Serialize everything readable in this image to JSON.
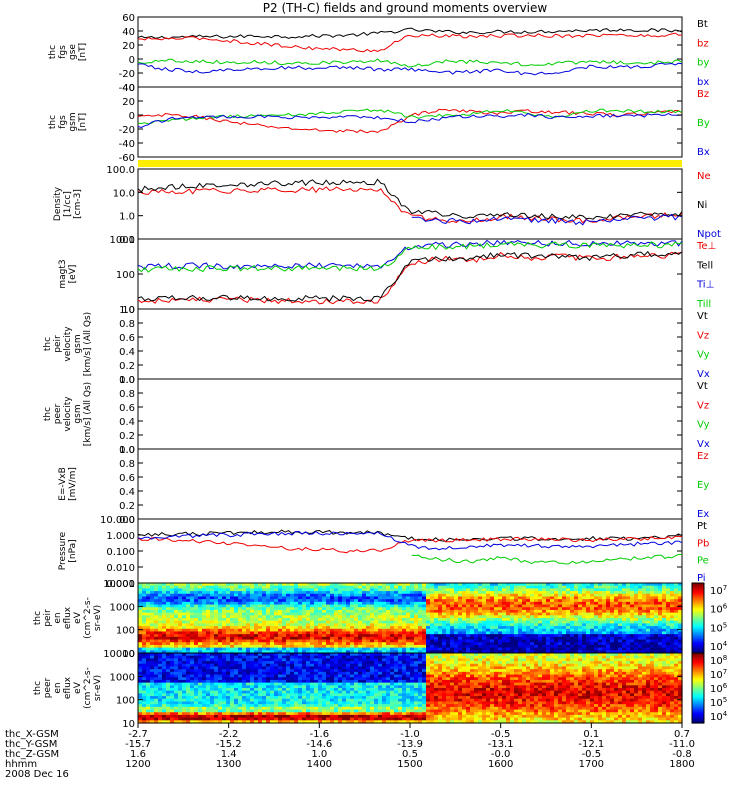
{
  "title": "P2 (TH-C) fields and ground moments overview",
  "colors": {
    "black": "#000000",
    "red": "#ee0000",
    "green": "#00cc00",
    "blue": "#0000dd",
    "yellow": "#ffee00"
  },
  "chart_data": [
    {
      "type": "line",
      "name": "fgs_gse",
      "ylabel": [
        "thc",
        "fgs",
        "gse",
        "[nT]"
      ],
      "ticks": [
        "60",
        "40",
        "20",
        "0",
        "-20",
        "-40"
      ],
      "ylim": [
        -40,
        60
      ],
      "series": [
        {
          "name": "Bt",
          "color": "#000000",
          "values": [
            30,
            31,
            32,
            32,
            33,
            32,
            33,
            34,
            37,
            42,
            39,
            38,
            39,
            39,
            40,
            41,
            42,
            41,
            40
          ]
        },
        {
          "name": "bz",
          "color": "#ee0000",
          "values": [
            28,
            29,
            30,
            26,
            22,
            18,
            15,
            13,
            12,
            34,
            33,
            32,
            33,
            34,
            33,
            34,
            34,
            33,
            36
          ]
        },
        {
          "name": "by",
          "color": "#00cc00",
          "values": [
            -5,
            -2,
            -3,
            -5,
            -4,
            -6,
            -5,
            -5,
            -2,
            -12,
            -3,
            -4,
            -5,
            -8,
            -6,
            -4,
            -5,
            -6,
            -3
          ]
        },
        {
          "name": "bx",
          "color": "#0000dd",
          "values": [
            -8,
            -15,
            -18,
            -16,
            -14,
            -12,
            -13,
            -12,
            -15,
            -15,
            -20,
            -18,
            -16,
            -22,
            -18,
            -10,
            -12,
            -10,
            -5
          ]
        }
      ]
    },
    {
      "type": "line",
      "name": "fgs_gsm",
      "ylabel": [
        "thc",
        "fgs",
        "gsm",
        "[nT]"
      ],
      "ticks": [
        "40",
        "20",
        "0",
        "-20",
        "-40",
        "-60"
      ],
      "ylim": [
        -65,
        40
      ],
      "series": [
        {
          "name": "Bz",
          "color": "#ee0000",
          "values": [
            -5,
            -2,
            -5,
            -12,
            -18,
            -22,
            -25,
            -26,
            -28,
            -3,
            6,
            3,
            1,
            4,
            2,
            0,
            -2,
            1,
            3
          ]
        },
        {
          "name": "By",
          "color": "#00cc00",
          "values": [
            -15,
            -10,
            -6,
            -4,
            -3,
            -2,
            0,
            4,
            6,
            -5,
            -3,
            0,
            5,
            0,
            -4,
            4,
            5,
            3,
            4
          ]
        },
        {
          "name": "Bx",
          "color": "#0000dd",
          "values": [
            -20,
            -8,
            -5,
            -5,
            -4,
            -6,
            -5,
            -4,
            -6,
            -12,
            -8,
            -3,
            -4,
            -2,
            -6,
            -4,
            -2,
            -3,
            0
          ]
        }
      ]
    },
    {
      "type": "bar",
      "name": "mode-bar",
      "color": "#ffee00"
    },
    {
      "type": "line",
      "name": "density",
      "ylabel": [
        "Density",
        "[1/cc]",
        "[cm-3]"
      ],
      "ticks": [
        "100.0",
        "10.0",
        "1.0",
        "0.1"
      ],
      "log": true,
      "ylim": [
        0.1,
        100
      ],
      "series": [
        {
          "name": "Ne",
          "color": "#ee0000",
          "values": [
            10,
            10,
            11,
            12,
            12,
            13,
            13,
            13,
            13,
            0.9,
            0.7,
            0.6,
            0.9,
            0.8,
            0.7,
            0.6,
            0.8,
            1.0,
            1.0
          ]
        },
        {
          "name": "Ni",
          "color": "#000000",
          "values": [
            13,
            17,
            20,
            22,
            23,
            25,
            27,
            27,
            28,
            1.5,
            1.2,
            0.9,
            1.2,
            1.0,
            0.9,
            0.8,
            1.0,
            1.2,
            1.2
          ]
        },
        {
          "name": "Npot",
          "color": "#0000dd",
          "values": [
            null,
            null,
            null,
            null,
            null,
            null,
            null,
            null,
            null,
            0.8,
            0.6,
            0.55,
            0.7,
            0.65,
            0.6,
            0.5,
            0.7,
            0.8,
            0.9
          ]
        }
      ]
    },
    {
      "type": "line",
      "name": "temperature",
      "ylabel": [
        "magt3",
        "[eV]"
      ],
      "ticks": [
        "1000",
        "100",
        "10"
      ],
      "log": true,
      "ylim": [
        8,
        5000
      ],
      "series": [
        {
          "name": "Te⊥",
          "color": "#ee0000",
          "values": [
            17,
            18,
            18,
            18,
            18,
            17,
            17,
            17,
            17,
            500,
            800,
            700,
            1200,
            900,
            1000,
            800,
            1000,
            1100,
            1200
          ]
        },
        {
          "name": "Tell",
          "color": "#000000",
          "values": [
            20,
            21,
            22,
            22,
            21,
            21,
            21,
            21,
            21,
            600,
            900,
            800,
            1300,
            1000,
            1100,
            900,
            1100,
            1200,
            1300
          ]
        },
        {
          "name": "Ti⊥",
          "color": "#0000dd",
          "values": [
            400,
            420,
            420,
            420,
            420,
            420,
            420,
            420,
            420,
            2500,
            3000,
            3200,
            3500,
            3300,
            3400,
            3300,
            3400,
            3400,
            3500
          ]
        },
        {
          "name": "Till",
          "color": "#00cc00",
          "values": [
            300,
            320,
            330,
            330,
            330,
            330,
            330,
            330,
            330,
            2000,
            2500,
            2700,
            3000,
            2800,
            2900,
            2800,
            2900,
            2900,
            3000
          ]
        }
      ]
    },
    {
      "type": "line",
      "name": "peir-velocity",
      "ylabel": [
        "thc",
        "peir",
        "velocity",
        "gsm",
        "[km/s] (All Qs)"
      ],
      "ticks": [
        "1.0",
        "0.8",
        "0.6",
        "0.4",
        "0.2",
        "0.0"
      ],
      "ylim": [
        0,
        1
      ],
      "series": [
        {
          "name": "Vt",
          "color": "#000000"
        },
        {
          "name": "Vz",
          "color": "#ee0000"
        },
        {
          "name": "Vy",
          "color": "#00cc00"
        },
        {
          "name": "Vx",
          "color": "#0000dd"
        }
      ]
    },
    {
      "type": "line",
      "name": "peer-velocity",
      "ylabel": [
        "thc",
        "peer",
        "velocity",
        "gsm",
        "[km/s] (All Qs)"
      ],
      "ticks": [
        "1.0",
        "0.8",
        "0.6",
        "0.4",
        "0.2",
        "0.0"
      ],
      "ylim": [
        0,
        1
      ],
      "series": [
        {
          "name": "Vt",
          "color": "#000000"
        },
        {
          "name": "Vz",
          "color": "#ee0000"
        },
        {
          "name": "Vy",
          "color": "#00cc00"
        },
        {
          "name": "Vx",
          "color": "#0000dd"
        }
      ]
    },
    {
      "type": "line",
      "name": "e-field",
      "ylabel": [
        "E=-VxB",
        "[mV/m]"
      ],
      "ticks": [
        "1.0",
        "0.8",
        "0.6",
        "0.4",
        "0.2",
        "0.0"
      ],
      "ylim": [
        0,
        1
      ],
      "series": [
        {
          "name": "Ez",
          "color": "#ee0000"
        },
        {
          "name": "Ey",
          "color": "#00cc00"
        },
        {
          "name": "Ex",
          "color": "#0000dd"
        }
      ]
    },
    {
      "type": "line",
      "name": "pressure",
      "ylabel": [
        "Pressure",
        "[nPa]"
      ],
      "ticks": [
        "10.000",
        "1.000",
        "0.100",
        "0.010",
        "0.001"
      ],
      "log": true,
      "ylim": [
        0.001,
        10
      ],
      "series": [
        {
          "name": "Pt",
          "color": "#000000",
          "values": [
            1.0,
            1.1,
            1.2,
            1.3,
            1.5,
            1.6,
            1.5,
            1.4,
            1.4,
            0.6,
            0.5,
            0.55,
            0.6,
            0.6,
            0.55,
            0.6,
            0.6,
            0.7,
            0.9
          ]
        },
        {
          "name": "Pb",
          "color": "#ee0000",
          "values": [
            0.6,
            0.5,
            0.4,
            0.3,
            0.2,
            0.15,
            0.12,
            0.1,
            0.1,
            0.5,
            0.45,
            0.5,
            0.55,
            0.55,
            0.5,
            0.5,
            0.55,
            0.6,
            0.8
          ]
        },
        {
          "name": "Pe",
          "color": "#00cc00",
          "values": [
            null,
            null,
            null,
            null,
            null,
            null,
            null,
            null,
            null,
            0.05,
            0.03,
            0.02,
            0.04,
            0.02,
            0.02,
            0.02,
            0.03,
            0.04,
            0.05
          ]
        },
        {
          "name": "Pi",
          "color": "#0000dd",
          "values": [
            0.6,
            0.8,
            0.9,
            1.0,
            1.2,
            1.3,
            1.3,
            1.2,
            1.2,
            0.2,
            0.15,
            0.2,
            0.25,
            0.2,
            0.2,
            0.2,
            0.25,
            0.3,
            0.35
          ]
        }
      ]
    },
    {
      "type": "heatmap",
      "name": "peir-spectrogram",
      "ylabel": [
        "thc",
        "peir",
        "en",
        "eflux",
        "eV",
        "(cm^2-s-",
        "sr-eV)"
      ],
      "ticks": [
        "10000",
        "1000",
        "100",
        "10"
      ],
      "colorbar_ticks": [
        "10^7",
        "10^6",
        "10^5",
        "10^4"
      ]
    },
    {
      "type": "heatmap",
      "name": "peer-spectrogram",
      "ylabel": [
        "thc",
        "peer",
        "en",
        "eflux",
        "eV",
        "(cm^2-s-",
        "sr-eV)"
      ],
      "ticks": [
        "10000",
        "1000",
        "100",
        "10"
      ],
      "colorbar_ticks": [
        "10^8",
        "10^7",
        "10^6",
        "10^5",
        "10^4"
      ]
    }
  ],
  "xaxis": {
    "rows": [
      {
        "label": "thc_X-GSM",
        "values": [
          "-2.7",
          "-2.2",
          "-1.6",
          "-1.0",
          "-0.5",
          "0.1",
          "0.7"
        ]
      },
      {
        "label": "thc_Y-GSM",
        "values": [
          "-15.7",
          "-15.2",
          "-14.6",
          "-13.9",
          "-13.1",
          "-12.1",
          "-11.0"
        ]
      },
      {
        "label": "thc_Z-GSM",
        "values": [
          "1.6",
          "1.4",
          "1.0",
          "0.5",
          "-0.0",
          "-0.5",
          "-0.8"
        ]
      },
      {
        "label": "hhmm",
        "values": [
          "1200",
          "1300",
          "1400",
          "1500",
          "1600",
          "1700",
          "1800"
        ]
      }
    ],
    "date": "2008 Dec 16"
  }
}
